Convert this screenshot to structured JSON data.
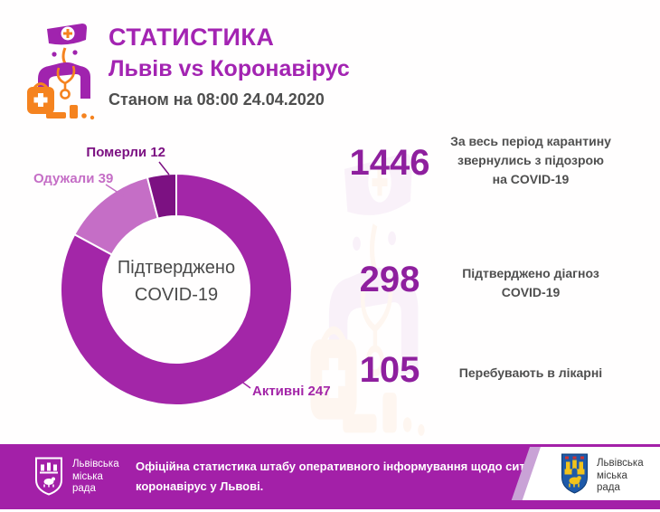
{
  "header": {
    "title": "СТАТИСТИКА",
    "subtitle": "Львів vs Коронавірус",
    "as_of": "Станом на 08:00 24.04.2020"
  },
  "chart_data": {
    "type": "pie",
    "donut": true,
    "title": "Підтверджено COVID-19",
    "total": 298,
    "start_angle_deg": -90,
    "clockwise": true,
    "legend_position": "labels-outside",
    "center": {
      "line1": "Підтверджено",
      "line2": "COVID-19"
    },
    "segments": [
      {
        "label": "Активні",
        "value": 247,
        "display": "Активні 247",
        "color": "#A326A8"
      },
      {
        "label": "Одужали",
        "value": 39,
        "display": "Одужали 39",
        "color": "#C56EC6"
      },
      {
        "label": "Померли",
        "value": 12,
        "display": "Померли 12",
        "color": "#7C1182"
      }
    ]
  },
  "stats": [
    {
      "value": "1446",
      "line1": "За весь період карантину",
      "line2": "звернулись з підозрою",
      "line3": "на COVID-19"
    },
    {
      "value": "298",
      "line1": "Підтверджено діагноз",
      "line2": "COVID-19",
      "line3": ""
    },
    {
      "value": "105",
      "line1": "Перебувають в лікарні",
      "line2": "",
      "line3": ""
    }
  ],
  "footer": {
    "note_line1": "Офіційна статистика штабу оперативного інформування щодо ситуації із захворюванн",
    "note_line2": "коронавірус у Львові.",
    "org_left": {
      "line1": "Львівська",
      "line2": "міська",
      "line3": "рада"
    },
    "org_right": {
      "line1": "Львівська",
      "line2": "міська",
      "line3": "рада"
    }
  },
  "colors": {
    "accent_magenta": "#A324B2",
    "number_purple": "#8E1F9E",
    "footer_bar": "#A320A8",
    "text_dark": "#4E4E4E",
    "crest_blue": "#1E5AA9",
    "crest_yellow": "#F2C31B",
    "icon_orange": "#F5831F",
    "icon_purple": "#A023AE"
  }
}
